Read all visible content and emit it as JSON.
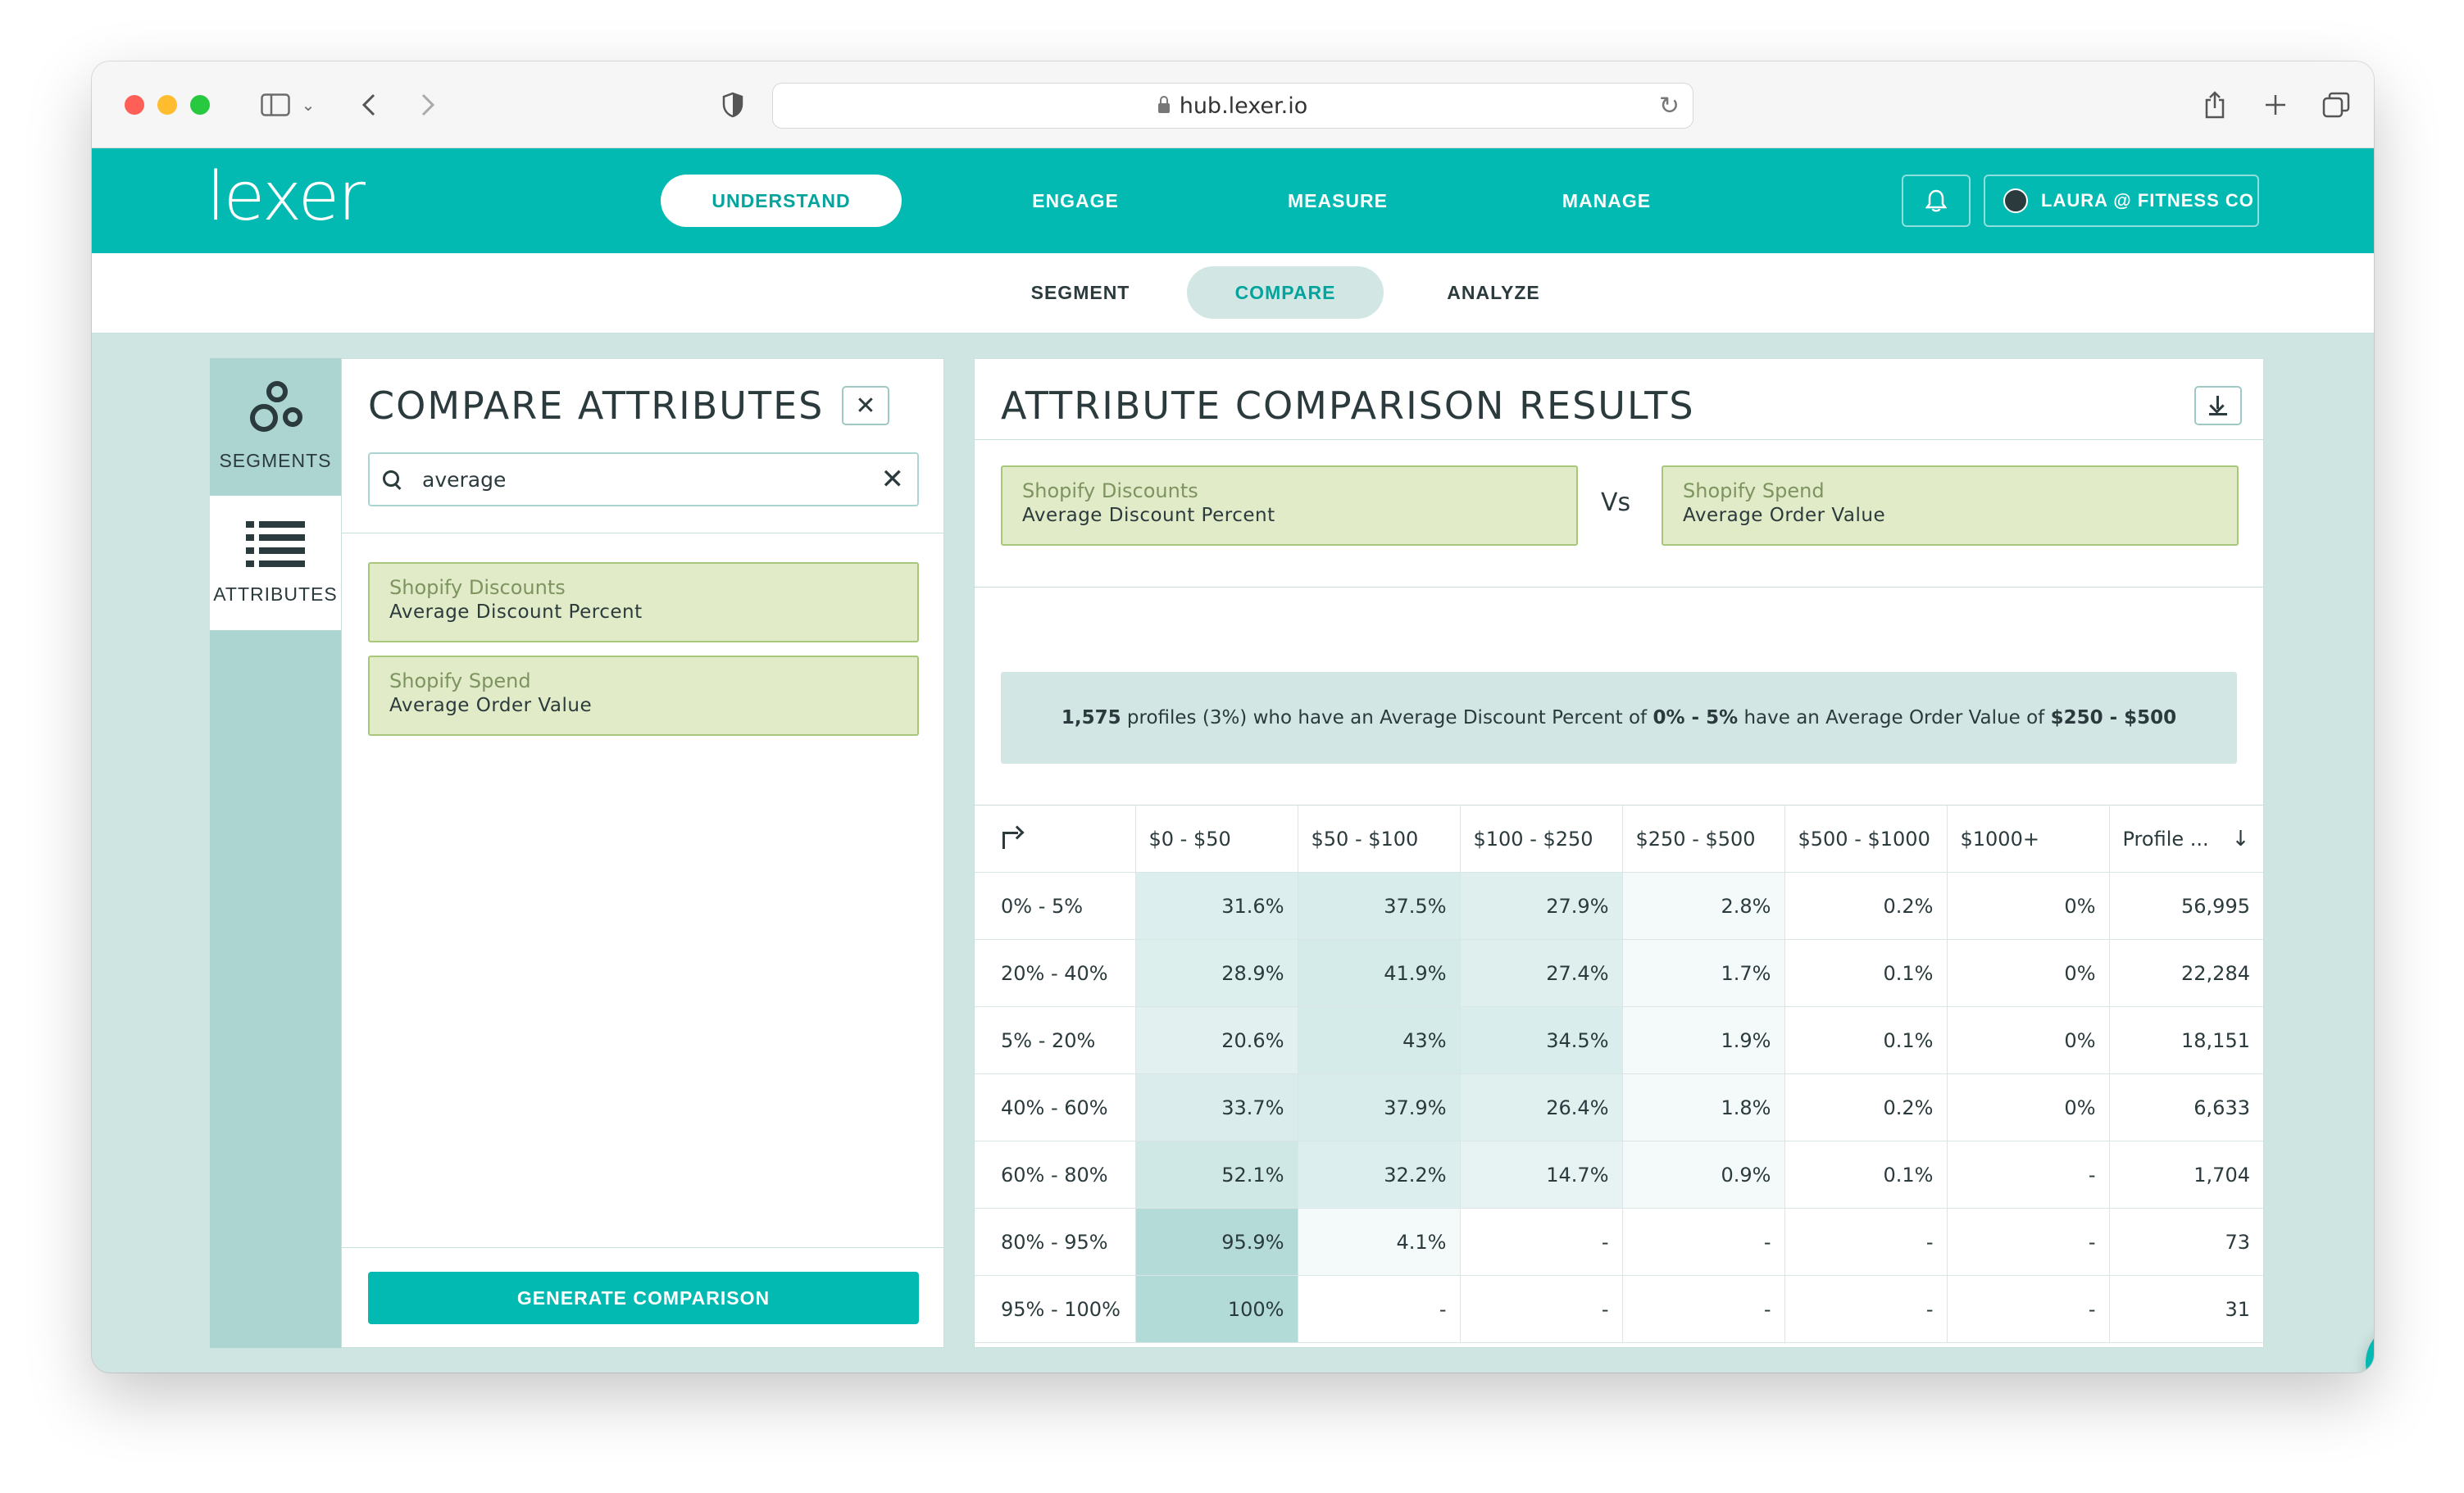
{
  "browser": {
    "url": "hub.lexer.io"
  },
  "brand": {
    "logo_text": "lexer",
    "accent": "#03bab3"
  },
  "topnav": {
    "items": [
      {
        "label": "UNDERSTAND",
        "active": true
      },
      {
        "label": "ENGAGE",
        "active": false
      },
      {
        "label": "MEASURE",
        "active": false
      },
      {
        "label": "MANAGE",
        "active": false
      }
    ],
    "user_label": "LAURA @ FITNESS CO"
  },
  "subnav": {
    "items": [
      {
        "label": "SEGMENT",
        "active": false
      },
      {
        "label": "COMPARE",
        "active": true
      },
      {
        "label": "ANALYZE",
        "active": false
      }
    ]
  },
  "sidebar": {
    "tabs": [
      {
        "label": "SEGMENTS",
        "icon": "segments-icon",
        "active": false
      },
      {
        "label": "ATTRIBUTES",
        "icon": "list-icon",
        "active": true
      }
    ]
  },
  "compare_panel": {
    "title": "COMPARE ATTRIBUTES",
    "search_value": "average",
    "attributes": [
      {
        "source": "Shopify Discounts",
        "name": "Average Discount Percent"
      },
      {
        "source": "Shopify Spend",
        "name": "Average Order Value"
      }
    ],
    "generate_label": "GENERATE COMPARISON"
  },
  "results": {
    "title": "ATTRIBUTE COMPARISON RESULTS",
    "left": {
      "source": "Shopify Discounts",
      "name": "Average Discount Percent"
    },
    "vs_label": "Vs",
    "right": {
      "source": "Shopify Spend",
      "name": "Average Order Value"
    },
    "summary": {
      "count": "1,575",
      "t1": " profiles (3%) who have an Average Discount Percent of ",
      "range1": "0% - 5%",
      "t2": " have an Average Order Value of ",
      "range2": "$250 - $500"
    },
    "table": {
      "columns": [
        "$0 - $50",
        "$50 - $100",
        "$100 - $250",
        "$250 - $500",
        "$500 - $1000",
        "$1000+"
      ],
      "profile_header": "Profile ...",
      "rows": [
        {
          "label": "0% - 5%",
          "cells": [
            "31.6%",
            "37.5%",
            "27.9%",
            "2.8%",
            "0.2%",
            "0%"
          ],
          "shade": [
            0.32,
            0.38,
            0.28,
            0.03,
            0,
            0
          ],
          "profiles": "56,995"
        },
        {
          "label": "20% - 40%",
          "cells": [
            "28.9%",
            "41.9%",
            "27.4%",
            "1.7%",
            "0.1%",
            "0%"
          ],
          "shade": [
            0.29,
            0.42,
            0.27,
            0.02,
            0,
            0
          ],
          "profiles": "22,284"
        },
        {
          "label": "5% - 20%",
          "cells": [
            "20.6%",
            "43%",
            "34.5%",
            "1.9%",
            "0.1%",
            "0%"
          ],
          "shade": [
            0.21,
            0.43,
            0.35,
            0.02,
            0,
            0
          ],
          "profiles": "18,151"
        },
        {
          "label": "40% - 60%",
          "cells": [
            "33.7%",
            "37.9%",
            "26.4%",
            "1.8%",
            "0.2%",
            "0%"
          ],
          "shade": [
            0.34,
            0.38,
            0.26,
            0.02,
            0,
            0
          ],
          "profiles": "6,633"
        },
        {
          "label": "60% - 80%",
          "cells": [
            "52.1%",
            "32.2%",
            "14.7%",
            "0.9%",
            "0.1%",
            "-"
          ],
          "shade": [
            0.52,
            0.32,
            0.15,
            0.01,
            0,
            0
          ],
          "profiles": "1,704"
        },
        {
          "label": "80% - 95%",
          "cells": [
            "95.9%",
            "4.1%",
            "-",
            "-",
            "-",
            "-"
          ],
          "shade": [
            0.96,
            0.04,
            0,
            0,
            0,
            0
          ],
          "profiles": "73"
        },
        {
          "label": "95% - 100%",
          "cells": [
            "100%",
            "-",
            "-",
            "-",
            "-",
            "-"
          ],
          "shade": [
            1,
            0,
            0,
            0,
            0,
            0
          ],
          "profiles": "31"
        }
      ]
    }
  }
}
